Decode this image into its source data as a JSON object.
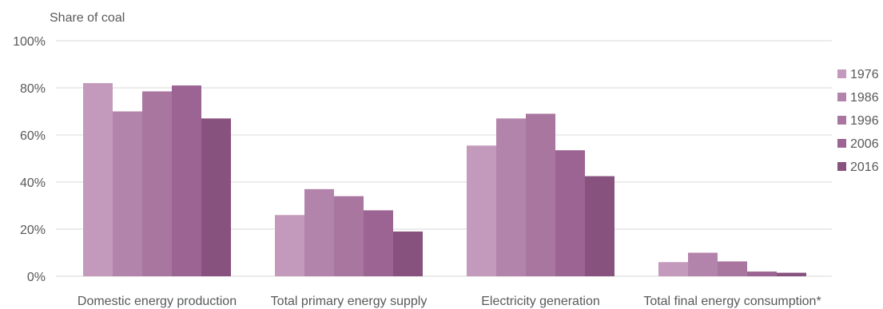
{
  "chart_data": {
    "type": "bar",
    "ylabel": "Share of coal",
    "categories": [
      "Domestic energy production",
      "Total primary energy supply",
      "Electricity generation",
      "Total final energy consumption*"
    ],
    "series": [
      {
        "name": "1976",
        "color": "#c39abb",
        "values": [
          82,
          26,
          55.5,
          6
        ]
      },
      {
        "name": "1986",
        "color": "#b384ab",
        "values": [
          70,
          37,
          67,
          10
        ]
      },
      {
        "name": "1996",
        "color": "#a9769f",
        "values": [
          78.5,
          34,
          69,
          6.3
        ]
      },
      {
        "name": "2006",
        "color": "#9b6492",
        "values": [
          81,
          28,
          53.5,
          2
        ]
      },
      {
        "name": "2016",
        "color": "#87527e",
        "values": [
          67,
          19,
          42.5,
          1.5
        ]
      }
    ],
    "ylim": [
      0,
      100
    ],
    "yticks": [
      "0%",
      "20%",
      "40%",
      "60%",
      "80%",
      "100%"
    ],
    "grid": true,
    "legend_position": "right"
  }
}
